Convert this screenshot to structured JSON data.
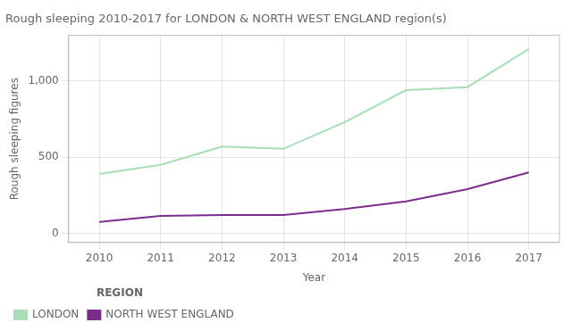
{
  "chart_data": {
    "type": "line",
    "title": "Rough sleeping 2010-2017 for LONDON & NORTH WEST ENGLAND region(s)",
    "xlabel": "Year",
    "ylabel": "Rough sleeping figures",
    "x": [
      2010,
      2011,
      2012,
      2013,
      2014,
      2015,
      2016,
      2017
    ],
    "series": [
      {
        "name": "LONDON",
        "color": "#a8ddb5",
        "values": [
          390,
          450,
          570,
          555,
          730,
          940,
          960,
          1210
        ]
      },
      {
        "name": "NORTH WEST ENGLAND",
        "color": "#7b2d8b",
        "values": [
          75,
          115,
          120,
          120,
          160,
          210,
          290,
          400
        ]
      }
    ],
    "xlim": [
      2009.5,
      2017.5
    ],
    "xticks": [
      2010,
      2011,
      2012,
      2013,
      2014,
      2015,
      2016,
      2017
    ],
    "ylim": [
      -60,
      1300
    ],
    "yticks": [
      0,
      500,
      {
        "value": 1000,
        "label": "1,000"
      }
    ],
    "grid": true,
    "legend": "bottom",
    "legend_title": "REGION"
  }
}
